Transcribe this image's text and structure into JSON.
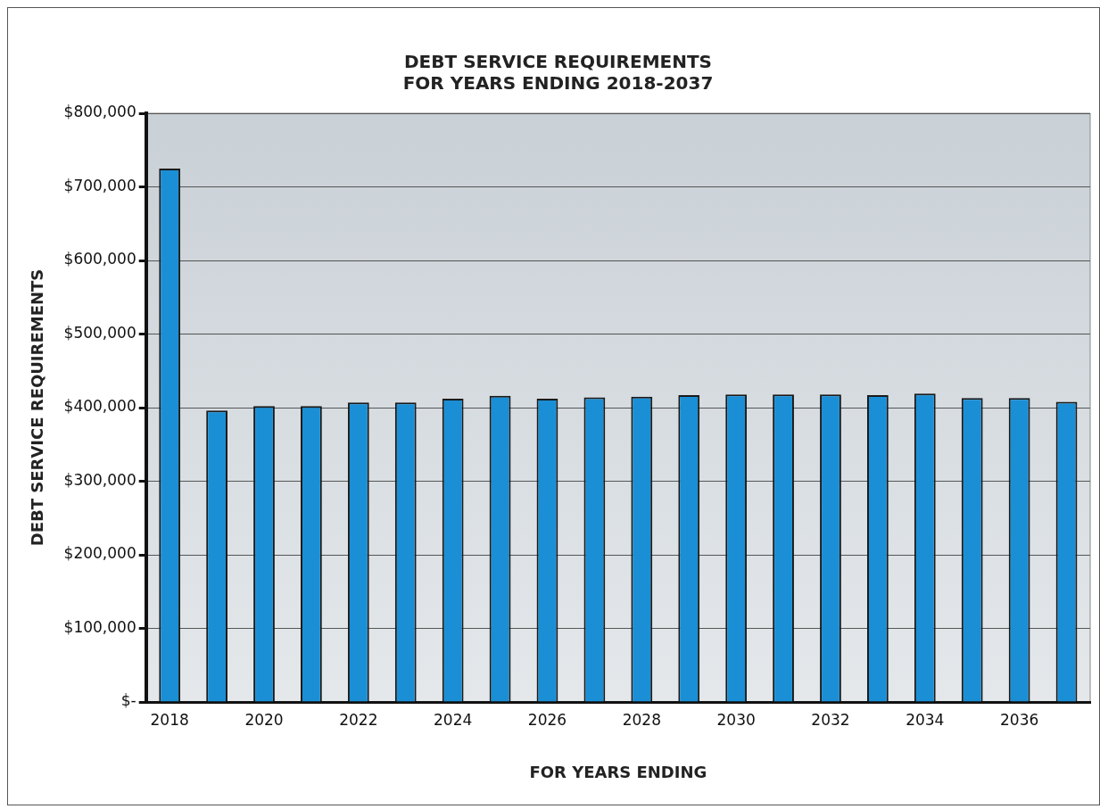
{
  "chart_data": {
    "type": "bar",
    "title": "DEBT SERVICE REQUIREMENTS\nFOR YEARS ENDING 2018-2037",
    "xlabel": "FOR YEARS ENDING",
    "ylabel": "DEBT SERVICE REQUIREMENTS",
    "categories": [
      "2018",
      null,
      "2020",
      null,
      "2022",
      null,
      "2024",
      null,
      "2026",
      null,
      "2028",
      null,
      "2030",
      null,
      "2032",
      null,
      "2034",
      null,
      "2036",
      null
    ],
    "series": [
      {
        "color": "#1a8fd6",
        "values": [
          725000,
          396000,
          402000,
          402000,
          407000,
          407000,
          412000,
          416000,
          412000,
          414000,
          415000,
          417000,
          418000,
          418000,
          418000,
          417000,
          419000,
          413000,
          413000,
          408000
        ]
      }
    ],
    "ylim": [
      0,
      800000
    ],
    "yticks": [
      {
        "value": 0,
        "label": "$-"
      },
      {
        "value": 100000,
        "label": "$100,000"
      },
      {
        "value": 200000,
        "label": "$200,000"
      },
      {
        "value": 300000,
        "label": "$300,000"
      },
      {
        "value": 400000,
        "label": "$400,000"
      },
      {
        "value": 500000,
        "label": "$500,000"
      },
      {
        "value": 600000,
        "label": "$600,000"
      },
      {
        "value": 700000,
        "label": "$700,000"
      },
      {
        "value": 800000,
        "label": "$800,000"
      }
    ],
    "grid": "y",
    "legend": false
  }
}
